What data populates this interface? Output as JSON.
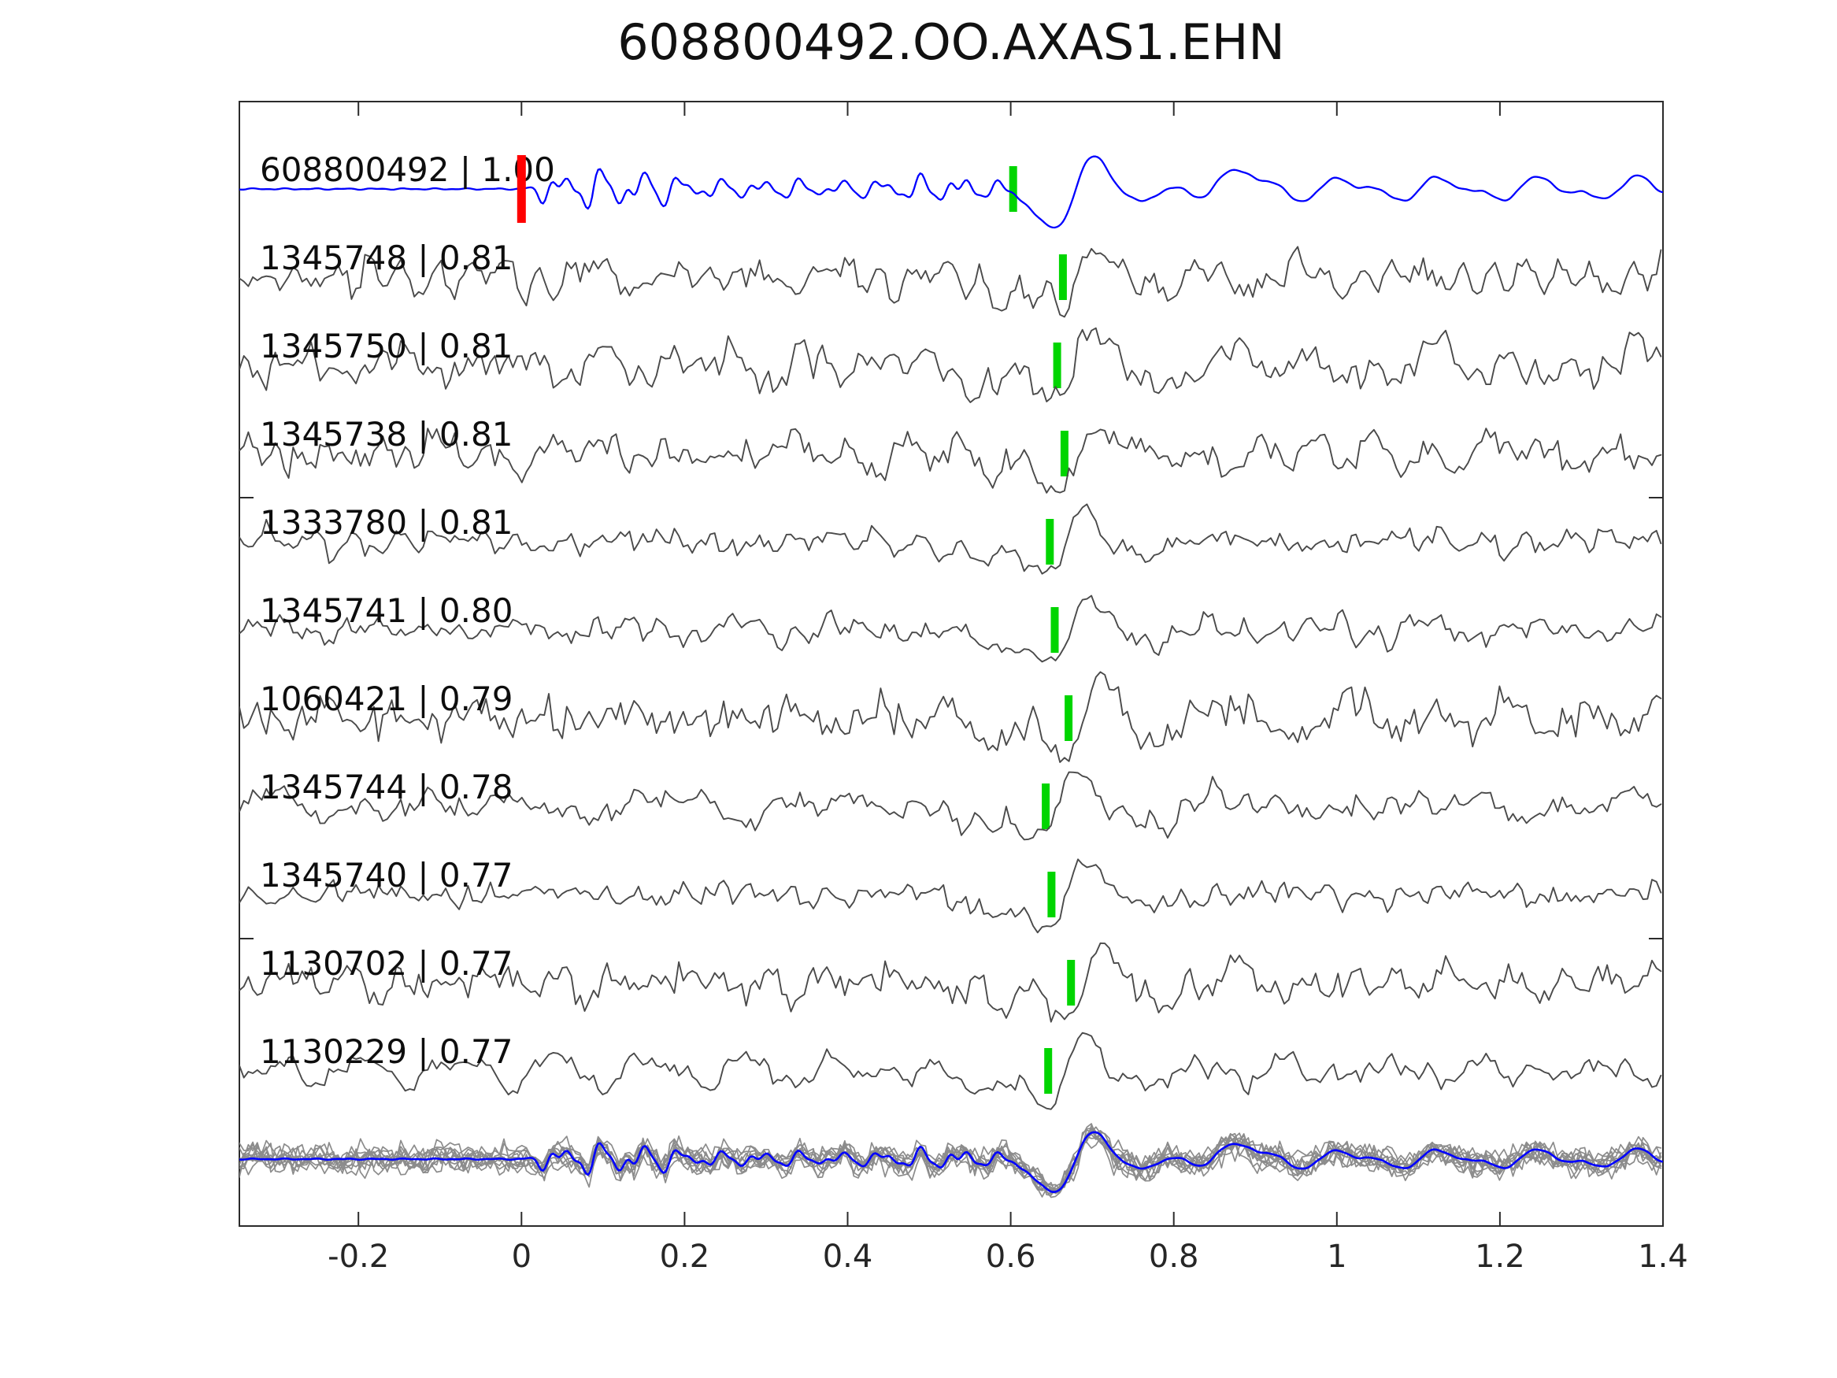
{
  "figure": {
    "title": "608800492.OO.AXAS1.EHN"
  },
  "colors": {
    "template_line": "#0000ff",
    "detection_line": "#4a4a4a",
    "stack_line": "#8c8c8c",
    "pick_marker": "#00d500",
    "origin_marker": "#ff0000",
    "axis": "#2b2b2b",
    "tick_label": "#262626",
    "trace_label": "#0d0d0d",
    "background": "#ffffff"
  },
  "chart_data": {
    "type": "line",
    "title": "608800492.OO.AXAS1.EHN",
    "x_axis": {
      "lim": [
        -0.346,
        1.4
      ],
      "ticks": [
        -0.2,
        0,
        0.2,
        0.4,
        0.6,
        0.8,
        1,
        1.2,
        1.4
      ],
      "tick_labels": [
        "-0.2",
        "0",
        "0.2",
        "0.4",
        "0.6",
        "0.8",
        "1",
        "1.2",
        "1.4"
      ],
      "ticks_on_top_and_bottom": true,
      "grid": false
    },
    "y_axis": {
      "tick_labels_shown": false,
      "unlabeled_tick_rows": [
        3.5,
        8.5
      ],
      "ticks_on_left_and_right": true
    },
    "legend": null,
    "traces": [
      {
        "row": 0,
        "id": "608800492",
        "label": "608800492 | 1.00",
        "correlation": 1.0,
        "role": "template",
        "pick_time": 0.603,
        "origin_time": 0.0,
        "noise_amp": 0,
        "event_amp": 62,
        "ring_amp": 0,
        "seed": 7
      },
      {
        "row": 1,
        "id": "1345748",
        "label": "1345748 | 0.81",
        "correlation": 0.81,
        "role": "detection",
        "pick_time": 0.664,
        "noise_amp": 14,
        "event_amp": 50,
        "ring_amp": 0,
        "seed": 11
      },
      {
        "row": 2,
        "id": "1345750",
        "label": "1345750 | 0.81",
        "correlation": 0.81,
        "role": "detection",
        "pick_time": 0.657,
        "noise_amp": 17,
        "event_amp": 52,
        "ring_amp": 0,
        "seed": 22
      },
      {
        "row": 3,
        "id": "1345738",
        "label": "1345738 | 0.81",
        "correlation": 0.81,
        "role": "detection",
        "pick_time": 0.666,
        "noise_amp": 15,
        "event_amp": 50,
        "ring_amp": 0,
        "seed": 33
      },
      {
        "row": 4,
        "id": "1333780",
        "label": "1333780 | 0.81",
        "correlation": 0.81,
        "role": "detection",
        "pick_time": 0.648,
        "noise_amp": 9,
        "event_amp": 52,
        "ring_amp": 0,
        "seed": 44
      },
      {
        "row": 5,
        "id": "1345741",
        "label": "1345741 | 0.80",
        "correlation": 0.8,
        "role": "detection",
        "pick_time": 0.654,
        "noise_amp": 10,
        "event_amp": 50,
        "ring_amp": 0,
        "seed": 55
      },
      {
        "row": 6,
        "id": "1060421",
        "label": "1060421 | 0.79",
        "correlation": 0.79,
        "role": "detection",
        "pick_time": 0.671,
        "noise_amp": 15,
        "event_amp": 55,
        "ring_amp": 22,
        "seed": 66
      },
      {
        "row": 7,
        "id": "1345744",
        "label": "1345744 | 0.78",
        "correlation": 0.78,
        "role": "detection",
        "pick_time": 0.643,
        "noise_amp": 12,
        "event_amp": 50,
        "ring_amp": 0,
        "seed": 77
      },
      {
        "row": 8,
        "id": "1345740",
        "label": "1345740 | 0.77",
        "correlation": 0.77,
        "role": "detection",
        "pick_time": 0.65,
        "noise_amp": 8,
        "event_amp": 50,
        "ring_amp": 0,
        "seed": 88
      },
      {
        "row": 9,
        "id": "1130702",
        "label": "1130702 | 0.77",
        "correlation": 0.77,
        "role": "detection",
        "pick_time": 0.674,
        "noise_amp": 14,
        "event_amp": 52,
        "ring_amp": 14,
        "seed": 99
      },
      {
        "row": 10,
        "id": "1130229",
        "label": "1130229 | 0.77",
        "correlation": 0.77,
        "role": "detection",
        "pick_time": 0.646,
        "noise_amp": 12,
        "event_amp": 50,
        "ring_amp": 0,
        "seed": 110
      }
    ],
    "stack": {
      "row": 11,
      "n_traces": 11,
      "noise_amp": 9,
      "template_scale": 0.72,
      "overlay_scale": 0.78,
      "seeds": [
        201,
        202,
        203,
        204,
        205,
        206,
        207,
        208,
        209,
        210,
        211
      ]
    }
  }
}
